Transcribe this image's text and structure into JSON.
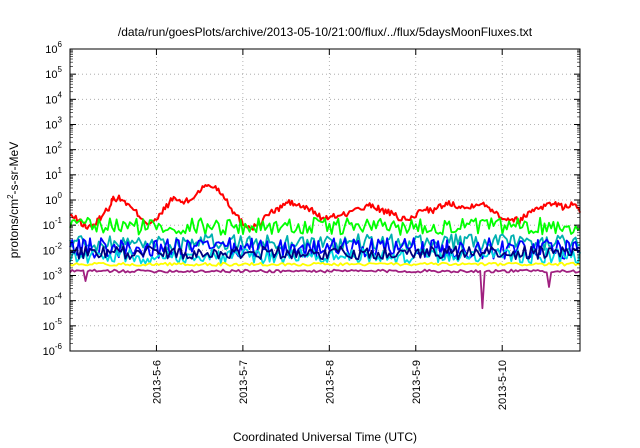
{
  "chart_data": {
    "type": "line",
    "title": "/data/run/goesPlots/archive/2013-05-10/21:00/flux/../flux/5daysMoonFluxes.txt",
    "xlabel": "Coordinated Universal Time (UTC)",
    "ylabel": {
      "base": "protons/cm",
      "sup": "2",
      "tail": "-s-sr-MeV"
    },
    "y_scale": "log",
    "ylim": [
      1e-06,
      1000000.0
    ],
    "y_ticks": [
      {
        "value": 1e-06,
        "exp": "-6"
      },
      {
        "value": 1e-05,
        "exp": "-5"
      },
      {
        "value": 0.0001,
        "exp": "-4"
      },
      {
        "value": 0.001,
        "exp": "-3"
      },
      {
        "value": 0.01,
        "exp": "-2"
      },
      {
        "value": 0.1,
        "exp": "-1"
      },
      {
        "value": 1,
        "exp": "0"
      },
      {
        "value": 10,
        "exp": "1"
      },
      {
        "value": 100,
        "exp": "2"
      },
      {
        "value": 1000,
        "exp": "3"
      },
      {
        "value": 10000,
        "exp": "4"
      },
      {
        "value": 100000,
        "exp": "5"
      },
      {
        "value": 1000000,
        "exp": "6"
      }
    ],
    "y_tick_base": "10",
    "x_unit": "day of May 2013 (UTC)",
    "xlim": [
      5.0,
      10.9
    ],
    "x_ticks": [
      {
        "value": 6,
        "label": "2013-5-6"
      },
      {
        "value": 7,
        "label": "2013-5-7"
      },
      {
        "value": 8,
        "label": "2013-5-8"
      },
      {
        "value": 9,
        "label": "2013-5-9"
      },
      {
        "value": 10,
        "label": "2013-5-10"
      }
    ],
    "grid": true,
    "legend": "none",
    "series": [
      {
        "color": "#ff0000",
        "values": [
          [
            5.0,
            0.25
          ],
          [
            5.1,
            0.15
          ],
          [
            5.2,
            0.08
          ],
          [
            5.3,
            0.12
          ],
          [
            5.35,
            0.2
          ],
          [
            5.45,
            0.5
          ],
          [
            5.5,
            1.2
          ],
          [
            5.6,
            1.1
          ],
          [
            5.7,
            0.5
          ],
          [
            5.8,
            0.25
          ],
          [
            5.9,
            0.12
          ],
          [
            6.0,
            0.15
          ],
          [
            6.1,
            0.5
          ],
          [
            6.2,
            1.2
          ],
          [
            6.3,
            0.8
          ],
          [
            6.4,
            1.0
          ],
          [
            6.5,
            2.5
          ],
          [
            6.6,
            4.0
          ],
          [
            6.7,
            3.0
          ],
          [
            6.8,
            1.2
          ],
          [
            6.9,
            0.3
          ],
          [
            7.0,
            0.12
          ],
          [
            7.1,
            0.08
          ],
          [
            7.2,
            0.12
          ],
          [
            7.3,
            0.3
          ],
          [
            7.4,
            0.4
          ],
          [
            7.5,
            0.8
          ],
          [
            7.6,
            0.7
          ],
          [
            7.7,
            0.5
          ],
          [
            7.8,
            0.4
          ],
          [
            7.9,
            0.2
          ],
          [
            8.0,
            0.18
          ],
          [
            8.1,
            0.25
          ],
          [
            8.2,
            0.3
          ],
          [
            8.4,
            0.5
          ],
          [
            8.5,
            0.6
          ],
          [
            8.6,
            0.4
          ],
          [
            8.7,
            0.3
          ],
          [
            8.8,
            0.2
          ],
          [
            8.9,
            0.15
          ],
          [
            9.0,
            0.25
          ],
          [
            9.1,
            0.5
          ],
          [
            9.2,
            0.35
          ],
          [
            9.3,
            0.6
          ],
          [
            9.4,
            0.75
          ],
          [
            9.5,
            0.6
          ],
          [
            9.6,
            0.45
          ],
          [
            9.7,
            0.8
          ],
          [
            9.8,
            0.6
          ],
          [
            9.9,
            0.4
          ],
          [
            10.0,
            0.2
          ],
          [
            10.1,
            0.18
          ],
          [
            10.2,
            0.15
          ],
          [
            10.3,
            0.3
          ],
          [
            10.4,
            0.5
          ],
          [
            10.5,
            0.6
          ],
          [
            10.6,
            0.8
          ],
          [
            10.7,
            0.5
          ],
          [
            10.8,
            0.7
          ],
          [
            10.9,
            0.4
          ]
        ]
      },
      {
        "color": "#00ff00",
        "base": 0.09,
        "amp": 2.2
      },
      {
        "color": "#00b0b0",
        "base": 0.02,
        "amp": 2.2
      },
      {
        "color": "#0000ff",
        "base": 0.012,
        "amp": 2.6
      },
      {
        "color": "#00d8e0",
        "base": 0.006,
        "amp": 2.0
      },
      {
        "color": "#000080",
        "base": 0.008,
        "amp": 1.8
      },
      {
        "color": "#ffff00",
        "base": 0.0028,
        "amp": 1.15
      },
      {
        "color": "#a02080",
        "base": 0.0015,
        "amp": 1.15,
        "dips": [
          [
            5.18,
            0.0006
          ],
          [
            9.77,
            5e-05
          ],
          [
            10.55,
            0.00035
          ]
        ]
      }
    ]
  }
}
